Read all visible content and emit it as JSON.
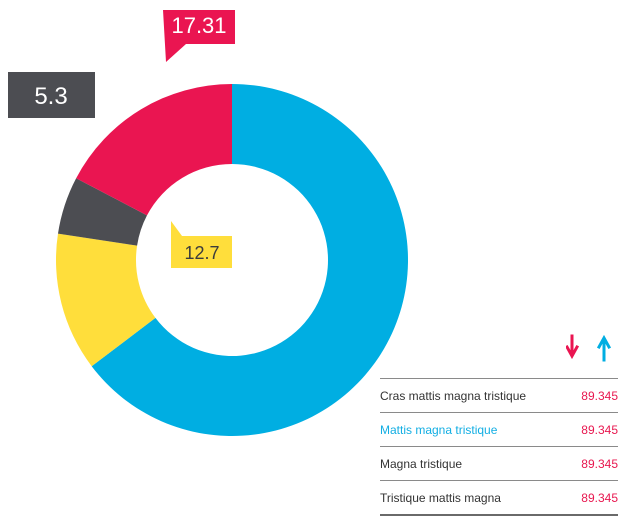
{
  "chart_data": {
    "type": "donut",
    "start_angle_deg": 0,
    "slices": [
      {
        "value": 64.69,
        "color": "#00aee2"
      },
      {
        "value": 12.7,
        "color": "#ffde3b"
      },
      {
        "value": 5.3,
        "color": "#4c4d52"
      },
      {
        "value": 17.31,
        "color": "#ea1551"
      }
    ],
    "callouts": [
      {
        "text": "17.31",
        "color": "#ea1551",
        "text_color": "#ffffff"
      },
      {
        "text": "5.3",
        "color": "#4c4d52",
        "text_color": "#ffffff"
      },
      {
        "text": "12.7",
        "color": "#ffde3b",
        "text_color": "#3c3c3c"
      }
    ]
  },
  "legend": {
    "arrow_down_color": "#ea1551",
    "arrow_up_color": "#00aee2",
    "rows": [
      {
        "label": "Cras mattis magna tristique",
        "value": "89.345"
      },
      {
        "label": "Mattis magna tristique",
        "value": "89.345"
      },
      {
        "label": "Magna tristique",
        "value": "89.345"
      },
      {
        "label": "Tristique mattis magna",
        "value": "89.345"
      }
    ]
  }
}
